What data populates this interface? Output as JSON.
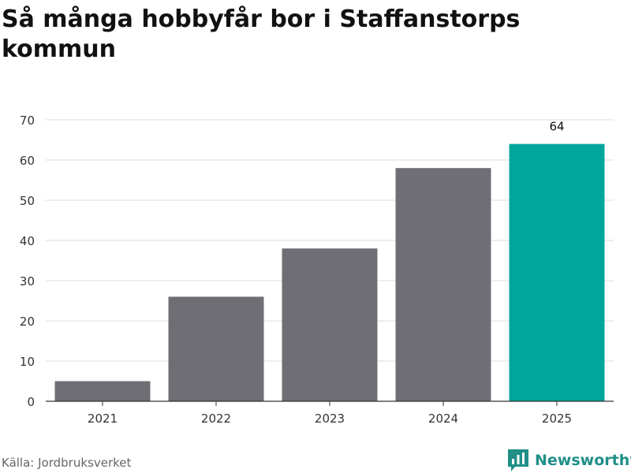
{
  "title": "Så många hobbyfår bor i Staffanstorps kommun",
  "source": "Källa: Jordbruksverket",
  "brand": {
    "name": "Newsworthy",
    "icon": "bar-chart-speech-bubble-icon"
  },
  "colors": {
    "bar": "#6f6e74",
    "highlight": "#00a69c",
    "grid": "#dcdcdc",
    "axis": "#333333",
    "text": "#333333",
    "brand": "#1f8f87"
  },
  "chart_data": {
    "type": "bar",
    "categories": [
      "2021",
      "2022",
      "2023",
      "2024",
      "2025"
    ],
    "values": [
      5,
      26,
      38,
      58,
      64
    ],
    "highlight_index": 4,
    "data_labels": [
      null,
      null,
      null,
      null,
      "64"
    ],
    "ylim": [
      0,
      70
    ],
    "yticks": [
      0,
      10,
      20,
      30,
      40,
      50,
      60,
      70
    ],
    "grid": true,
    "xlabel": "",
    "ylabel": ""
  }
}
